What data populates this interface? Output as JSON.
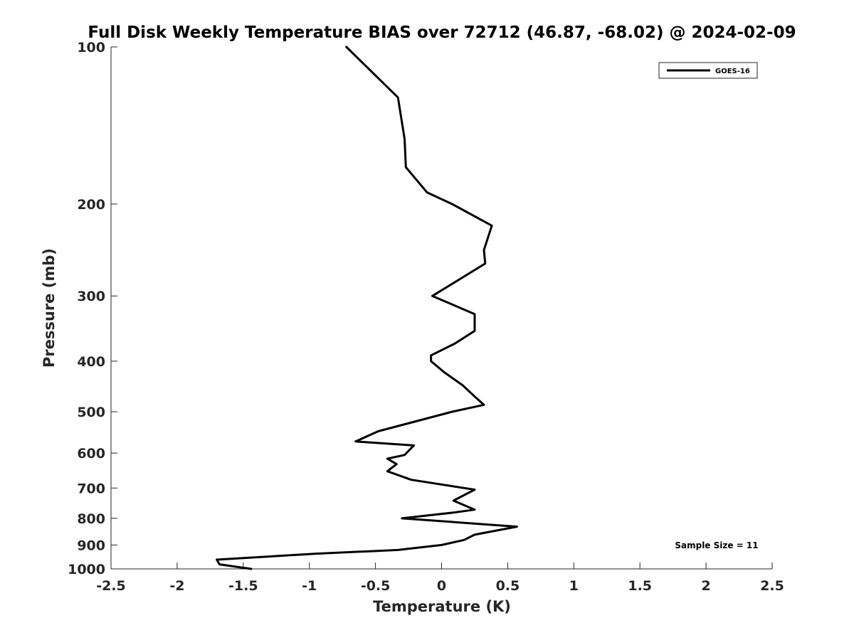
{
  "chart_data": {
    "type": "line",
    "title": "Full Disk Weekly Temperature BIAS over 72712 (46.87, -68.02) @ 2024-02-09",
    "xlabel": "Temperature (K)",
    "ylabel": "Pressure (mb)",
    "xlim": [
      -2.5,
      2.5
    ],
    "ylim": [
      100,
      1000
    ],
    "y_scale": "log",
    "y_reversed": true,
    "grid": false,
    "legend_position": "top-right",
    "x_ticks": [
      -2.5,
      -2,
      -1.5,
      -1,
      -0.5,
      0,
      0.5,
      1,
      1.5,
      2,
      2.5
    ],
    "x_tick_labels": [
      "-2.5",
      "-2",
      "-1.5",
      "-1",
      "-0.5",
      "0",
      "0.5",
      "1",
      "1.5",
      "2",
      "2.5"
    ],
    "y_ticks": [
      100,
      200,
      300,
      400,
      500,
      600,
      700,
      800,
      900,
      1000
    ],
    "y_tick_labels": [
      "100",
      "200",
      "300",
      "400",
      "500",
      "600",
      "700",
      "800",
      "900",
      "1000"
    ],
    "series": [
      {
        "name": "GOES-16",
        "color": "#000000",
        "points": [
          {
            "x": -0.72,
            "y": 100
          },
          {
            "x": -0.33,
            "y": 125
          },
          {
            "x": -0.28,
            "y": 150
          },
          {
            "x": -0.27,
            "y": 170
          },
          {
            "x": -0.11,
            "y": 190
          },
          {
            "x": 0.08,
            "y": 200
          },
          {
            "x": 0.38,
            "y": 220
          },
          {
            "x": 0.32,
            "y": 245
          },
          {
            "x": 0.33,
            "y": 260
          },
          {
            "x": -0.07,
            "y": 300
          },
          {
            "x": 0.25,
            "y": 325
          },
          {
            "x": 0.25,
            "y": 350
          },
          {
            "x": 0.1,
            "y": 370
          },
          {
            "x": -0.08,
            "y": 390
          },
          {
            "x": -0.08,
            "y": 400
          },
          {
            "x": 0.02,
            "y": 420
          },
          {
            "x": 0.16,
            "y": 445
          },
          {
            "x": 0.26,
            "y": 470
          },
          {
            "x": 0.32,
            "y": 485
          },
          {
            "x": 0.08,
            "y": 500
          },
          {
            "x": -0.48,
            "y": 545
          },
          {
            "x": -0.65,
            "y": 570
          },
          {
            "x": -0.21,
            "y": 580
          },
          {
            "x": -0.28,
            "y": 605
          },
          {
            "x": -0.41,
            "y": 615
          },
          {
            "x": -0.34,
            "y": 630
          },
          {
            "x": -0.41,
            "y": 650
          },
          {
            "x": -0.23,
            "y": 675
          },
          {
            "x": 0.25,
            "y": 705
          },
          {
            "x": 0.09,
            "y": 740
          },
          {
            "x": 0.25,
            "y": 770
          },
          {
            "x": 0.09,
            "y": 780
          },
          {
            "x": -0.3,
            "y": 800
          },
          {
            "x": 0.57,
            "y": 830
          },
          {
            "x": 0.25,
            "y": 860
          },
          {
            "x": 0.17,
            "y": 880
          },
          {
            "x": 0.0,
            "y": 900
          },
          {
            "x": -0.33,
            "y": 920
          },
          {
            "x": -0.95,
            "y": 935
          },
          {
            "x": -1.7,
            "y": 960
          },
          {
            "x": -1.68,
            "y": 980
          },
          {
            "x": -1.44,
            "y": 1000
          }
        ]
      }
    ],
    "legend": [
      {
        "label": "GOES-16",
        "color": "#000000"
      }
    ],
    "annotations": [
      "Sample Size = 11"
    ]
  }
}
